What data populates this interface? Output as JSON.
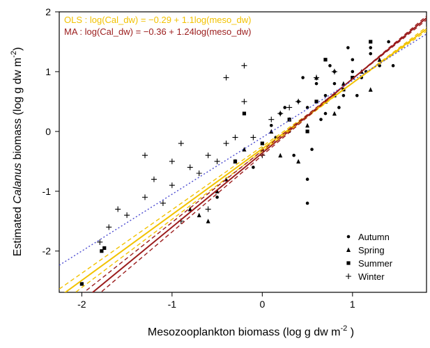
{
  "chart_data": {
    "type": "scatter",
    "xlabel_parts": [
      "Mesozooplankton biomass  (log g dw m",
      "-2",
      " )"
    ],
    "ylabel_parts": [
      "Estimated ",
      "Calanus",
      " biomass  (log g dw m",
      "-2",
      ")"
    ],
    "xlim": [
      -2.25,
      1.82
    ],
    "ylim": [
      -2.69,
      2
    ],
    "xticks": [
      -2,
      -1,
      0,
      1
    ],
    "yticks": [
      -2,
      -1,
      0,
      1,
      2
    ],
    "legend": "lower right",
    "series": [
      {
        "name": "Autumn",
        "marker": "circle",
        "color": "#000000",
        "x": [
          0.1,
          0.2,
          0.3,
          0.4,
          0.5,
          0.6,
          0.7,
          0.8,
          0.9,
          1.0,
          1.1,
          1.2,
          1.3,
          1.4,
          0.55,
          0.65,
          0.75,
          0.85,
          0.95,
          1.05,
          1.15,
          0.35,
          0.45,
          0.25,
          0.6,
          0.8,
          1.0,
          1.2,
          0.7,
          0.9,
          -0.1,
          0.15,
          1.45,
          0.5,
          -0.5,
          0.5
        ],
        "values": [
          0.1,
          0.3,
          0.0,
          0.5,
          0.4,
          0.8,
          0.6,
          1.0,
          0.7,
          1.2,
          0.9,
          1.3,
          1.1,
          1.5,
          -0.3,
          0.2,
          1.1,
          0.4,
          1.4,
          0.6,
          1.0,
          -0.4,
          0.9,
          0.4,
          0.5,
          0.8,
          1.0,
          1.4,
          0.3,
          0.6,
          -0.6,
          -0.1,
          1.1,
          -1.2,
          -1.1,
          -0.8
        ]
      },
      {
        "name": "Spring",
        "marker": "triangle",
        "color": "#000000",
        "x": [
          -0.8,
          -0.6,
          -0.5,
          -0.4,
          -0.3,
          -0.2,
          0.0,
          0.1,
          0.2,
          0.3,
          0.5,
          0.7,
          0.9,
          1.1,
          1.3,
          0.4,
          0.6,
          -0.7,
          1.2,
          0.8
        ],
        "values": [
          -1.3,
          -1.5,
          -1.0,
          -0.8,
          -0.5,
          -0.3,
          -0.3,
          0.0,
          -0.4,
          0.2,
          0.1,
          0.5,
          0.8,
          1.0,
          1.2,
          -0.5,
          0.9,
          -1.4,
          0.7,
          0.3
        ]
      },
      {
        "name": "Summer",
        "marker": "square",
        "color": "#000000",
        "x": [
          -2.0,
          -1.75,
          -1.78,
          -0.2,
          0.0,
          0.3,
          0.6,
          0.8,
          1.0,
          1.2,
          0.5,
          -0.3,
          0.9,
          0.7
        ],
        "values": [
          -2.55,
          -1.95,
          -2.0,
          0.3,
          -0.2,
          0.2,
          0.5,
          0.6,
          0.9,
          1.5,
          0.0,
          -0.5,
          0.7,
          1.2
        ]
      },
      {
        "name": "Winter",
        "marker": "plus",
        "color": "#000000",
        "x": [
          -1.8,
          -1.7,
          -1.6,
          -1.5,
          -1.3,
          -1.2,
          -1.1,
          -1.0,
          -0.9,
          -0.8,
          -0.7,
          -0.6,
          -0.5,
          -0.4,
          -0.3,
          -0.2,
          -0.1,
          0.0,
          0.1,
          0.2,
          0.3,
          0.4,
          -1.0,
          -0.9,
          -0.4,
          -0.2,
          0.6,
          0.8,
          -1.3,
          -0.6
        ],
        "values": [
          -1.85,
          -1.6,
          -1.3,
          -1.4,
          -1.1,
          -0.8,
          -1.2,
          -0.9,
          -0.2,
          -0.6,
          -0.7,
          -0.4,
          -0.5,
          -0.2,
          -0.1,
          0.5,
          -0.1,
          -0.4,
          0.2,
          0.3,
          0.4,
          0.5,
          -0.5,
          -1.5,
          0.9,
          1.1,
          0.9,
          1.0,
          -0.4,
          -1.3
        ]
      }
    ],
    "fit_lines": [
      {
        "label": "OLS : log(Cal_dw) = −0.29 + 1.1log(meso_dw)",
        "color": "#f2c200",
        "intercept": -0.29,
        "slope": 1.1,
        "style": "solid"
      },
      {
        "label": "MA : log(Cal_dw) = −0.36 + 1.24log(meso_dw)",
        "color": "#9b1c1c",
        "intercept": -0.36,
        "slope": 1.24,
        "style": "solid"
      },
      {
        "color": "#f2c200",
        "intercept": -0.25,
        "slope": 1.06,
        "style": "dashed"
      },
      {
        "color": "#f2c200",
        "intercept": -0.33,
        "slope": 1.14,
        "style": "dashed"
      },
      {
        "color": "#9b1c1c",
        "intercept": -0.32,
        "slope": 1.2,
        "style": "dashed"
      },
      {
        "color": "#9b1c1c",
        "intercept": -0.4,
        "slope": 1.28,
        "style": "dashed"
      },
      {
        "color": "#4a4ad0",
        "intercept": -0.1,
        "slope": 0.95,
        "style": "dotted"
      }
    ]
  }
}
